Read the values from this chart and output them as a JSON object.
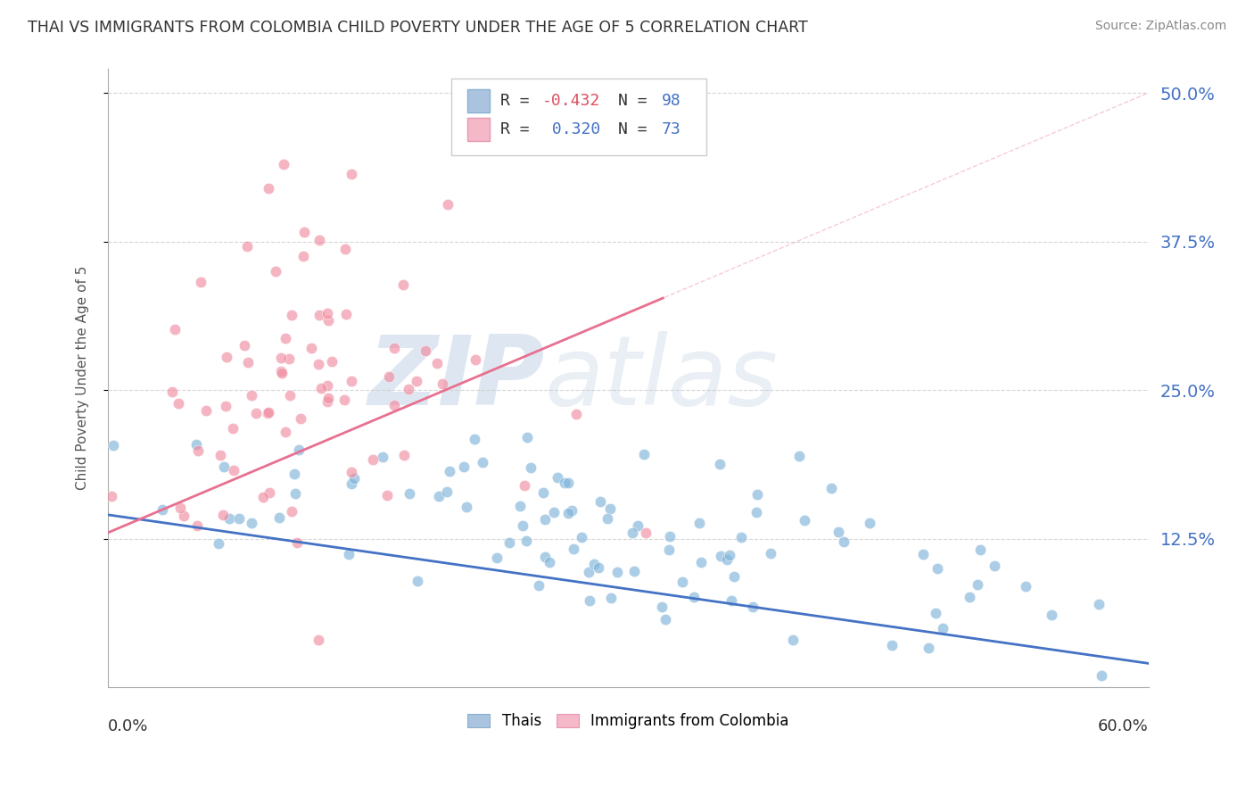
{
  "title": "THAI VS IMMIGRANTS FROM COLOMBIA CHILD POVERTY UNDER THE AGE OF 5 CORRELATION CHART",
  "source": "Source: ZipAtlas.com",
  "ylabel": "Child Poverty Under the Age of 5",
  "ytick_positions": [
    0.125,
    0.25,
    0.375,
    0.5
  ],
  "ytick_labels": [
    "12.5%",
    "25.0%",
    "37.5%",
    "50.0%"
  ],
  "xlim": [
    0.0,
    0.6
  ],
  "ylim": [
    0.0,
    0.52
  ],
  "series1_name": "Thais",
  "series1_color": "#7fb3d9",
  "series1_face": "#aac4e0",
  "series1_R": -0.432,
  "series1_N": 98,
  "series2_name": "Immigrants from Colombia",
  "series2_color": "#f08ca0",
  "series2_face": "#f5b8c8",
  "series2_R": 0.32,
  "series2_N": 73,
  "trend1_x0": 0.0,
  "trend1_x1": 0.6,
  "trend1_y0": 0.145,
  "trend1_y1": 0.02,
  "trend2_x0": 0.0,
  "trend2_x1": 0.6,
  "trend2_y0": 0.13,
  "trend2_y1": 0.5,
  "watermark_zip": "ZIP",
  "watermark_atlas": "atlas",
  "background_color": "#ffffff",
  "grid_color": "#cccccc",
  "title_color": "#333333",
  "tick_label_color": "#4472c4",
  "legend_r1": "-0.432",
  "legend_n1": "98",
  "legend_r2": "0.320",
  "legend_n2": "73"
}
